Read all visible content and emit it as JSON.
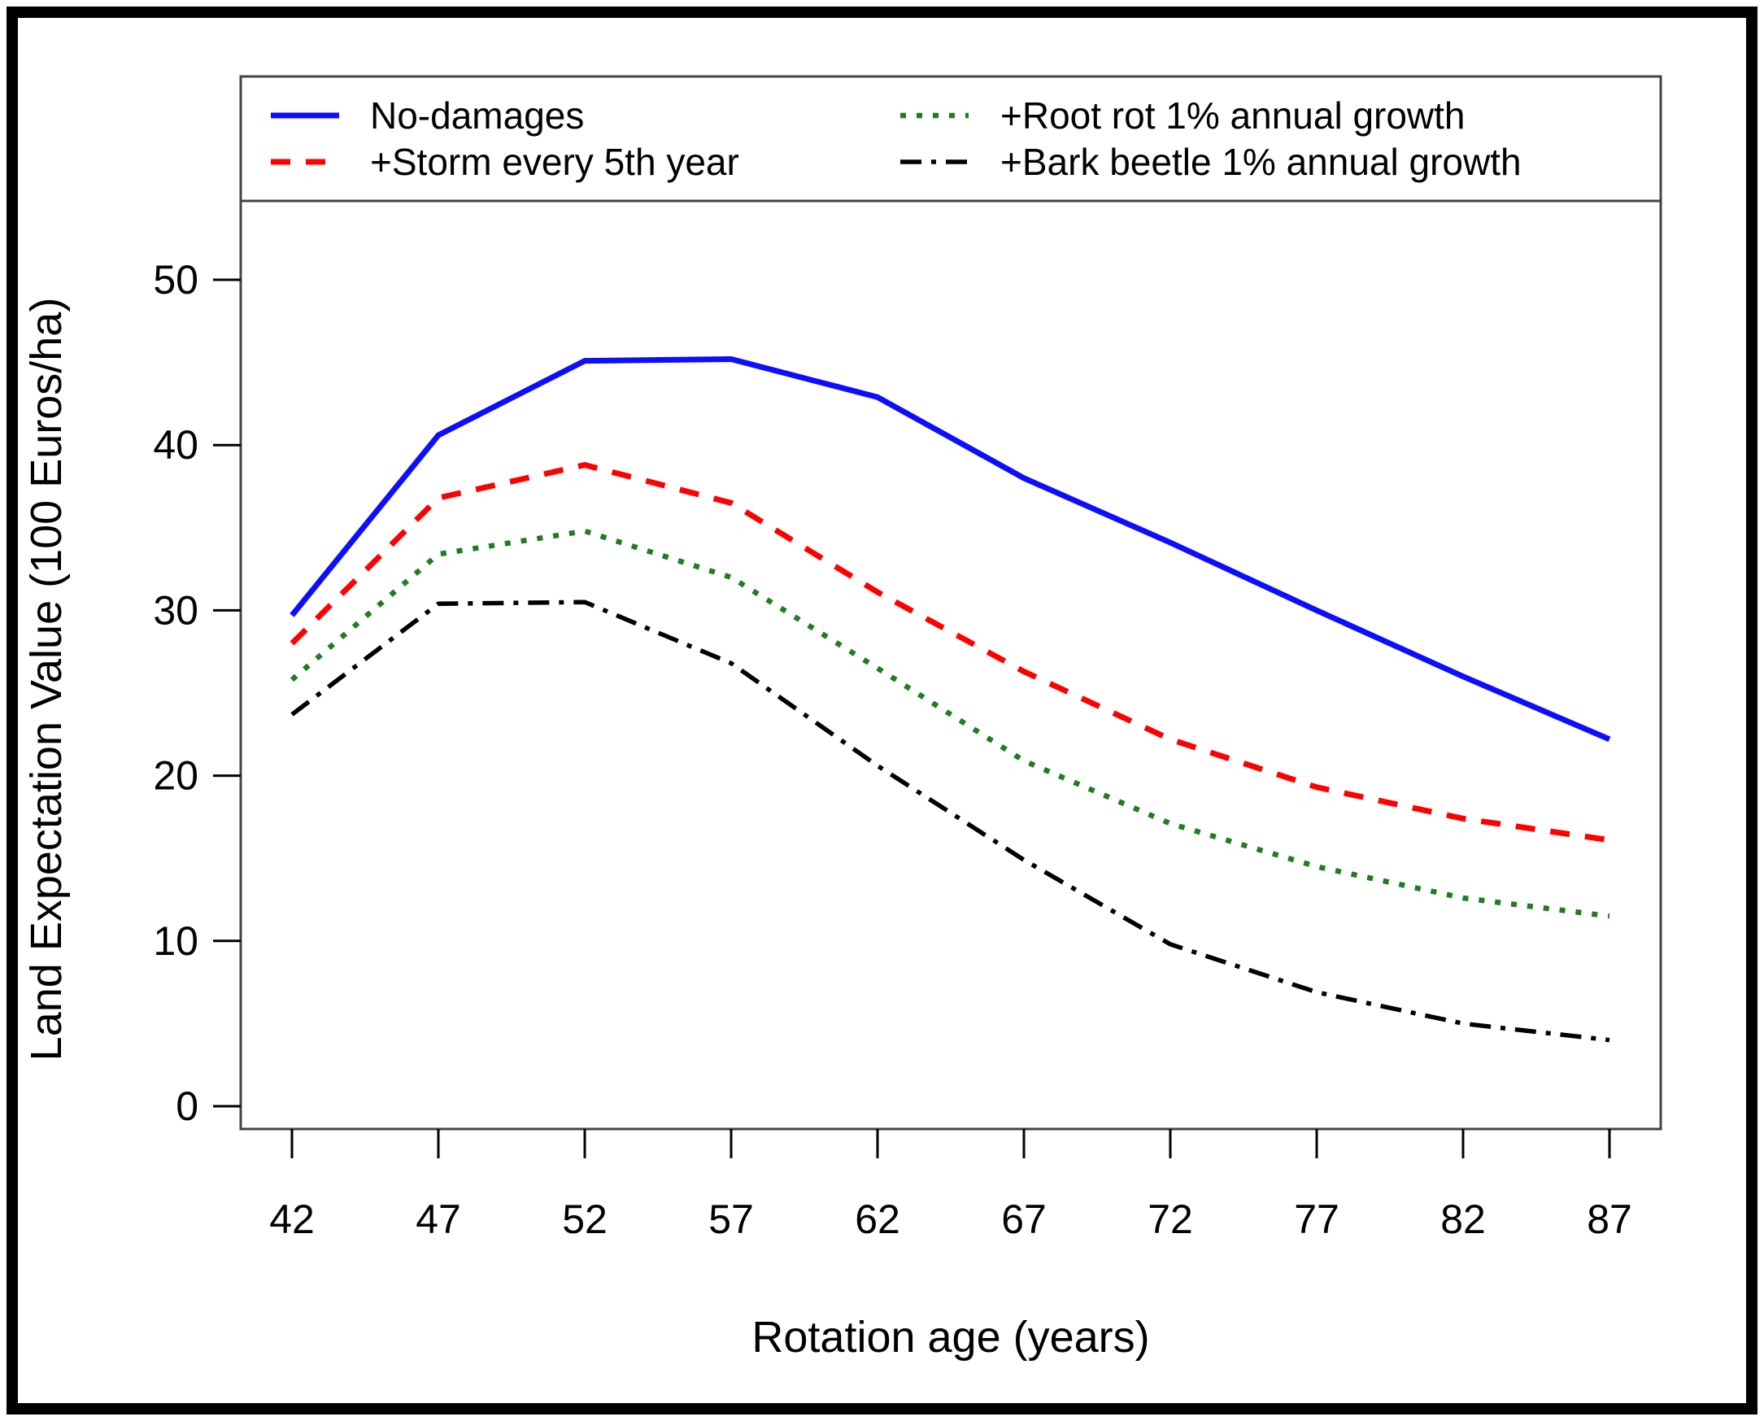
{
  "chart_data": {
    "type": "line",
    "title": "",
    "xlabel": "Rotation age (years)",
    "ylabel": "Land Expectation Value (100 Euros/ha)",
    "x": [
      42,
      47,
      52,
      57,
      62,
      67,
      72,
      77,
      82,
      87
    ],
    "xticks": [
      42,
      47,
      52,
      57,
      62,
      67,
      72,
      77,
      82,
      87
    ],
    "yticks": [
      0,
      10,
      20,
      30,
      40,
      50
    ],
    "xlim": [
      42,
      87
    ],
    "ylim": [
      0,
      50
    ],
    "grid": false,
    "legend_position": "top",
    "frame_color": "#444444",
    "series": [
      {
        "name": "No-damages",
        "color": "#0d0dff",
        "line_style": "solid",
        "values": [
          29.7,
          40.6,
          45.1,
          45.2,
          42.9,
          38.0,
          34.1,
          30.0,
          26.0,
          22.2
        ]
      },
      {
        "name": "+Storm every 5th year",
        "color": "#ff0000",
        "line_style": "dashed",
        "values": [
          28.0,
          36.8,
          38.8,
          36.5,
          31.1,
          26.3,
          22.2,
          19.3,
          17.4,
          16.1
        ]
      },
      {
        "name": "+Root rot 1% annual growth",
        "color": "#1e7d1e",
        "line_style": "dotted",
        "values": [
          25.8,
          33.4,
          34.8,
          32.0,
          26.5,
          20.9,
          17.1,
          14.5,
          12.6,
          11.5
        ]
      },
      {
        "name": "+Bark beetle 1% annual growth",
        "color": "#000000",
        "line_style": "dashdot",
        "values": [
          23.7,
          30.4,
          30.5,
          26.8,
          20.6,
          14.9,
          9.8,
          6.9,
          5.0,
          4.0
        ]
      }
    ]
  }
}
